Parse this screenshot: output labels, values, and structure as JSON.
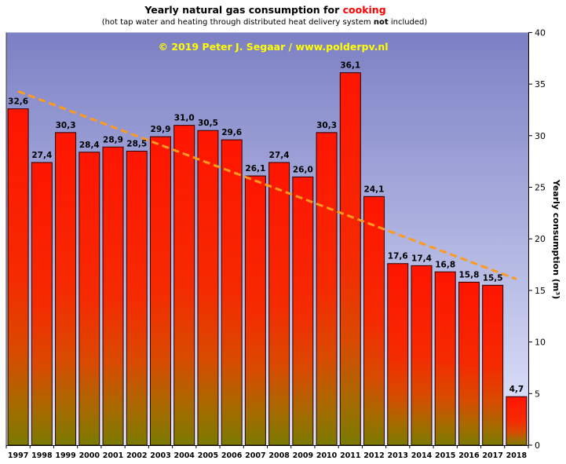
{
  "chart_data": {
    "type": "bar",
    "title": "Yearly natural gas consumption for",
    "title_highlight": "cooking",
    "subtitle": "(hot tap water and heating through distributed heat delivery system",
    "subtitle_emphasis": "not",
    "subtitle_end": "included)",
    "credit": "© 2019 Peter J. Segaar / www.polderpv.nl",
    "ylabel": "Yearly consumption (m³)",
    "y_axis_position": "right",
    "ylim": [
      0,
      40
    ],
    "yticks": [
      0,
      5,
      10,
      15,
      20,
      25,
      30,
      35,
      40
    ],
    "grid": false,
    "categories": [
      "1997",
      "1998",
      "1999",
      "2000",
      "2001",
      "2002",
      "2003",
      "2004",
      "2005",
      "2006",
      "2007",
      "2008",
      "2009",
      "2010",
      "2011",
      "2012",
      "2013",
      "2014",
      "2015",
      "2016",
      "2017",
      "2018"
    ],
    "values": [
      32.6,
      27.4,
      30.3,
      28.4,
      28.9,
      28.5,
      29.9,
      31.0,
      30.5,
      29.6,
      26.1,
      27.4,
      26.0,
      30.3,
      36.1,
      24.1,
      17.6,
      17.4,
      16.8,
      15.8,
      15.5,
      4.7
    ],
    "trendline": {
      "x": [
        1997,
        2018
      ],
      "y": [
        34.3,
        16.1
      ]
    }
  },
  "colors": {
    "plot_background_top": "#7c80c4",
    "plot_background_bottom": "#e2e7fd",
    "bar_gradient": [
      "#ff1500",
      "#f52a00",
      "#d94a00",
      "#a66a00",
      "#7a7a00"
    ],
    "bar_outline": "#2a0000",
    "trendline": "#ff9a1e",
    "credit": "#ffff00",
    "title_highlight": "#ff0000"
  }
}
